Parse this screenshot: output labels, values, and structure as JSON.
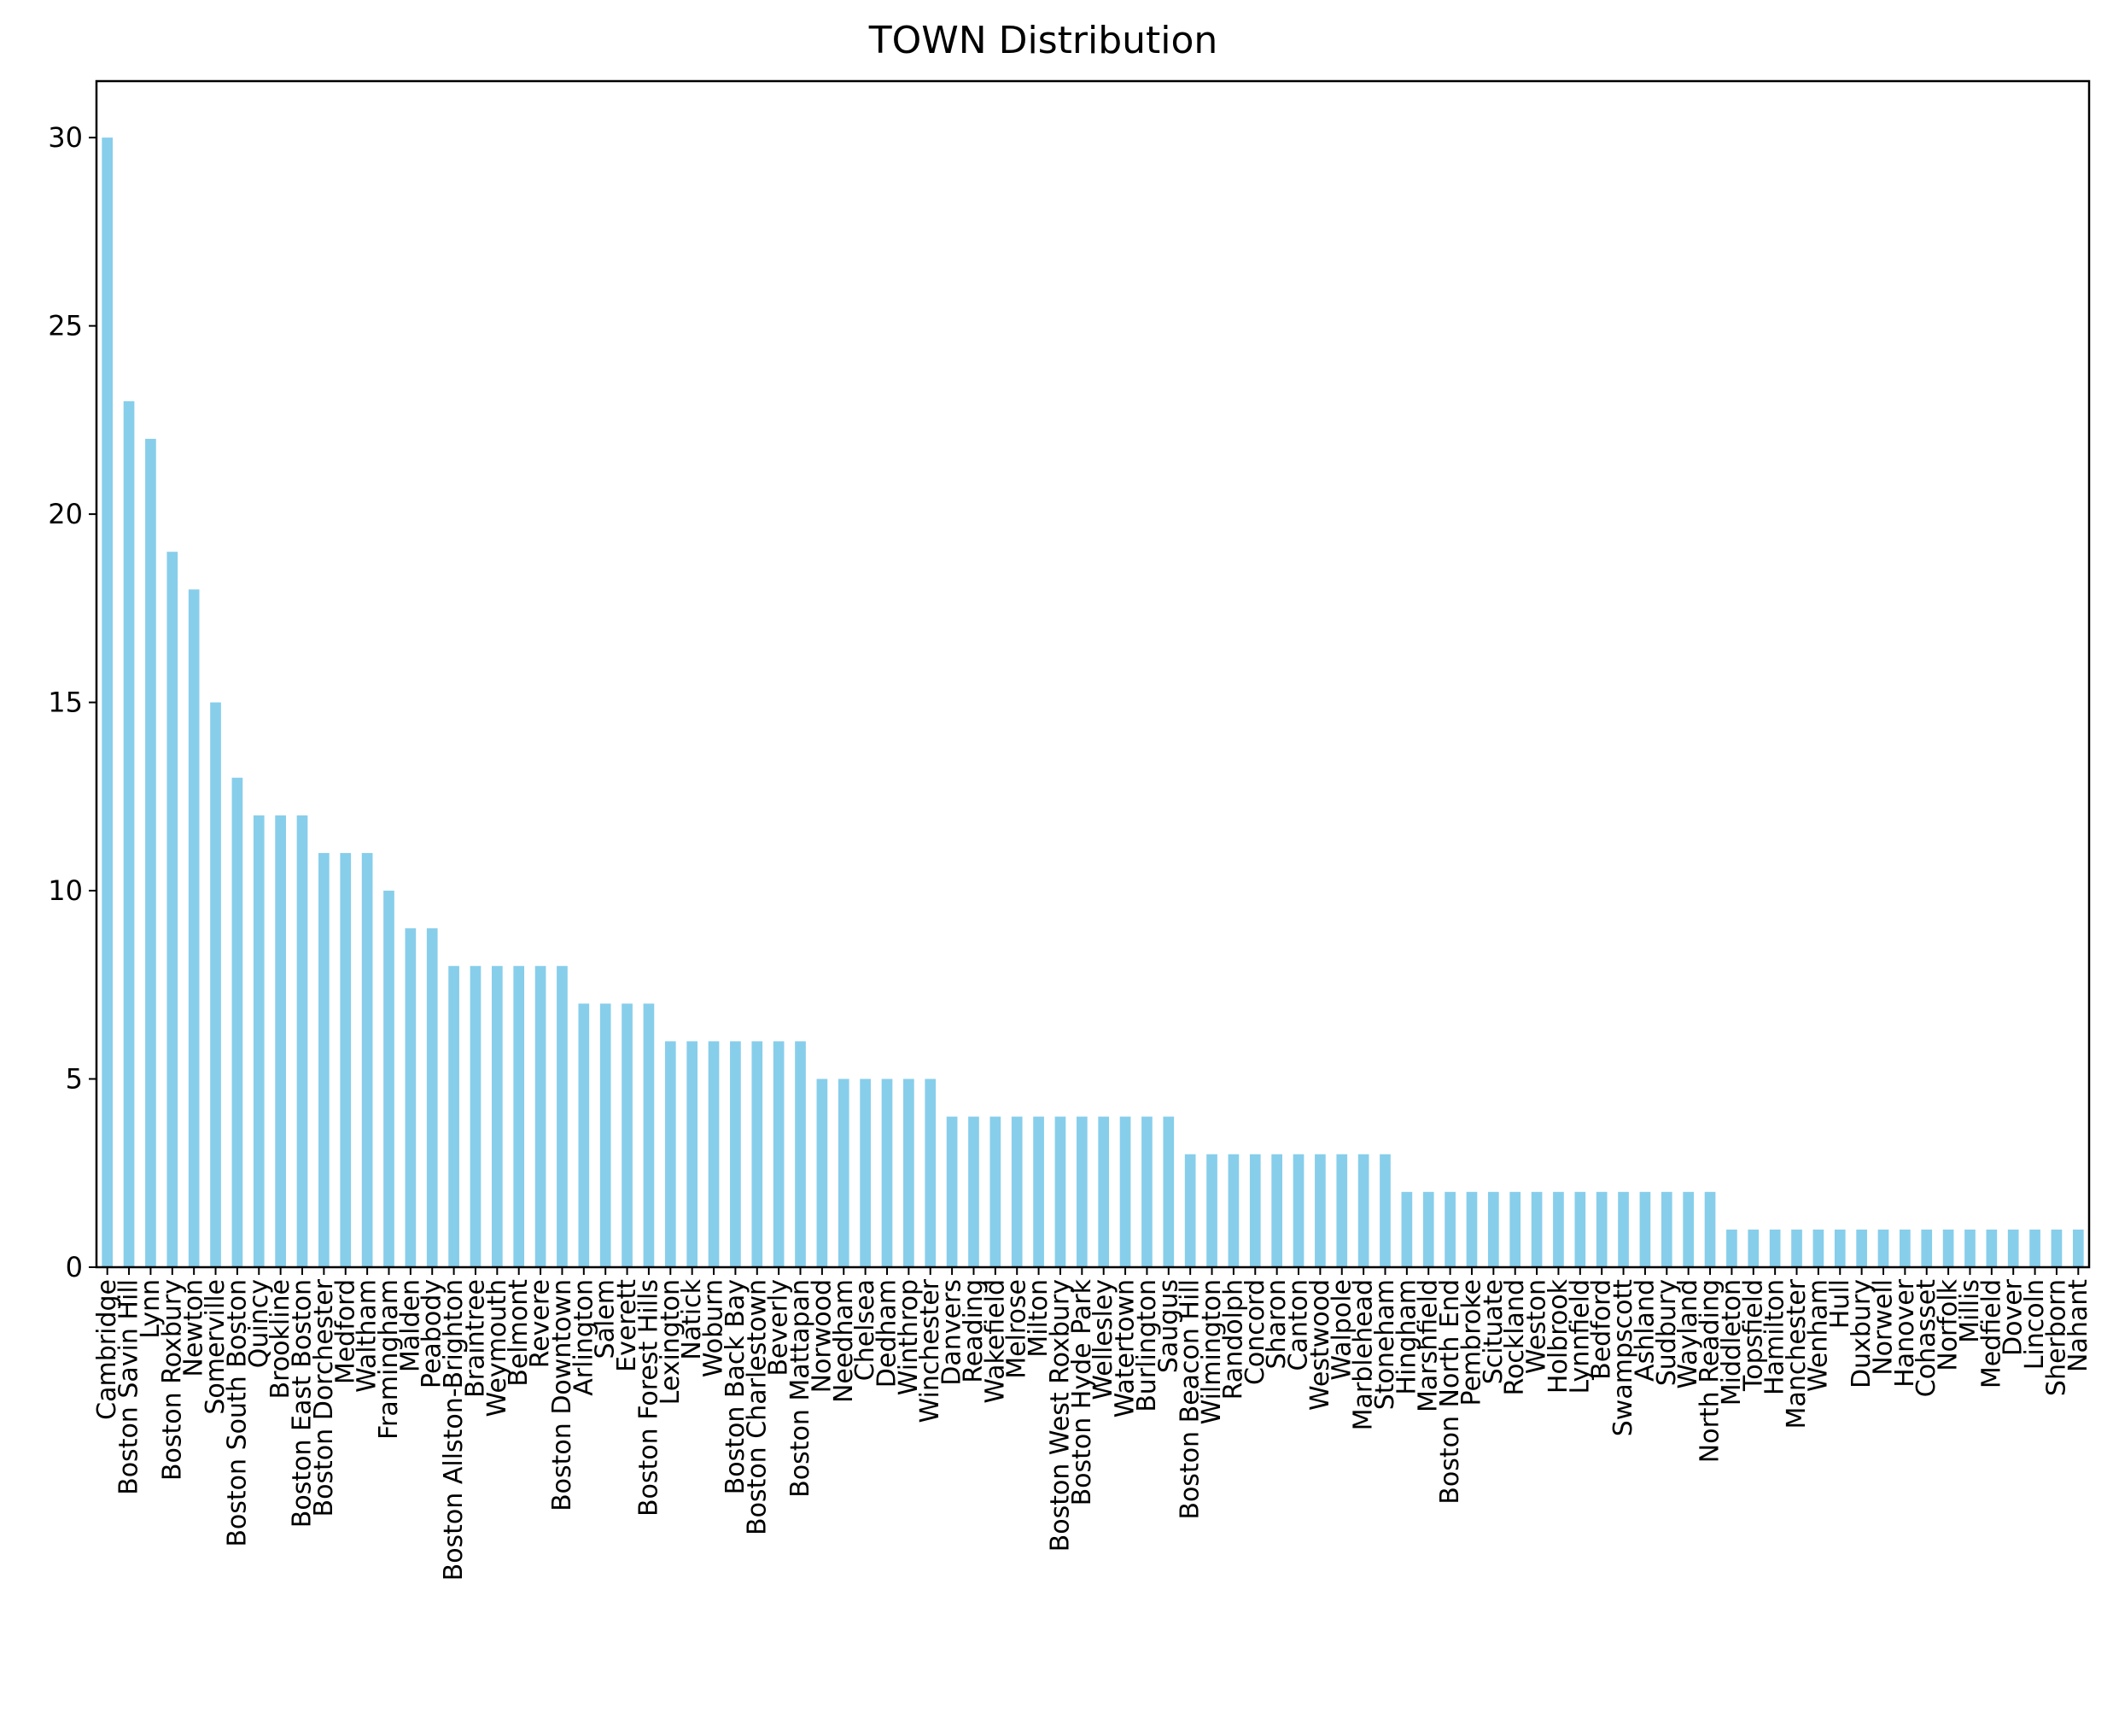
{
  "colors": {
    "bar": "#87CEEB",
    "axis": "#000000",
    "background": "#ffffff"
  },
  "chart_data": {
    "type": "bar",
    "title": "TOWN Distribution",
    "xlabel": "",
    "ylabel": "",
    "ylim": [
      0,
      31.5
    ],
    "yticks": [
      0,
      5,
      10,
      15,
      20,
      25,
      30
    ],
    "grid": false,
    "legend": "none",
    "categories": [
      "Cambridge",
      "Boston Savin Hill",
      "Lynn",
      "Boston Roxbury",
      "Newton",
      "Somerville",
      "Boston South Boston",
      "Quincy",
      "Brookline",
      "Boston East Boston",
      "Boston Dorchester",
      "Medford",
      "Waltham",
      "Framingham",
      "Malden",
      "Peabody",
      "Boston Allston-Brighton",
      "Braintree",
      "Weymouth",
      "Belmont",
      "Revere",
      "Boston Downtown",
      "Arlington",
      "Salem",
      "Everett",
      "Boston Forest Hills",
      "Lexington",
      "Natick",
      "Woburn",
      "Boston Back Bay",
      "Boston Charlestown",
      "Beverly",
      "Boston Mattapan",
      "Norwood",
      "Needham",
      "Chelsea",
      "Dedham",
      "Winthrop",
      "Winchester",
      "Danvers",
      "Reading",
      "Wakefield",
      "Melrose",
      "Milton",
      "Boston West Roxbury",
      "Boston Hyde Park",
      "Wellesley",
      "Watertown",
      "Burlington",
      "Saugus",
      "Boston Beacon Hill",
      "Wilmington",
      "Randolph",
      "Concord",
      "Sharon",
      "Canton",
      "Westwood",
      "Walpole",
      "Marblehead",
      "Stoneham",
      "Hingham",
      "Marshfield",
      "Boston North End",
      "Pembroke",
      "Scituate",
      "Rockland",
      "Weston",
      "Holbrook",
      "Lynnfield",
      "Bedford",
      "Swampscott",
      "Ashland",
      "Sudbury",
      "Wayland",
      "North Reading",
      "Middleton",
      "Topsfield",
      "Hamilton",
      "Manchester",
      "Wenham",
      "Hull",
      "Duxbury",
      "Norwell",
      "Hanover",
      "Cohasset",
      "Norfolk",
      "Millis",
      "Medfield",
      "Dover",
      "Lincoln",
      "Sherborn",
      "Nahant"
    ],
    "values": [
      30,
      23,
      22,
      19,
      18,
      15,
      13,
      12,
      12,
      12,
      11,
      11,
      11,
      10,
      9,
      9,
      8,
      8,
      8,
      8,
      8,
      8,
      7,
      7,
      7,
      7,
      6,
      6,
      6,
      6,
      6,
      6,
      6,
      5,
      5,
      5,
      5,
      5,
      5,
      4,
      4,
      4,
      4,
      4,
      4,
      4,
      4,
      4,
      4,
      4,
      3,
      3,
      3,
      3,
      3,
      3,
      3,
      3,
      3,
      3,
      2,
      2,
      2,
      2,
      2,
      2,
      2,
      2,
      2,
      2,
      2,
      2,
      2,
      2,
      2,
      1,
      1,
      1,
      1,
      1,
      1,
      1,
      1,
      1,
      1,
      1,
      1,
      1,
      1,
      1,
      1,
      1
    ]
  }
}
